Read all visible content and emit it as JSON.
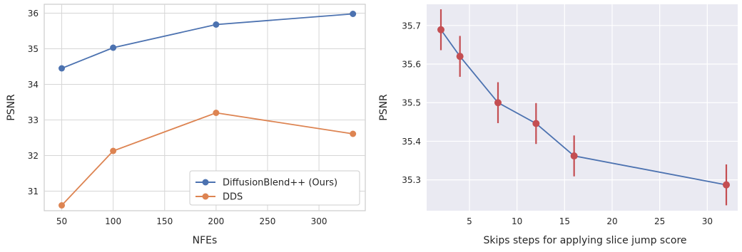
{
  "chart_data": [
    {
      "type": "line",
      "xlabel": "NFEs",
      "ylabel": "PSNR",
      "xlim": [
        33,
        345
      ],
      "ylim": [
        30.45,
        36.25
      ],
      "xticks": [
        50,
        100,
        150,
        200,
        250,
        300
      ],
      "yticks": [
        31,
        32,
        33,
        34,
        35,
        36
      ],
      "grid": true,
      "background": "white",
      "legend": "lower-right",
      "series": [
        {
          "name": "DiffusionBlend++ (Ours)",
          "color": "#4c72b0",
          "x": [
            50,
            100,
            200,
            333
          ],
          "y": [
            34.45,
            35.03,
            35.68,
            35.98
          ]
        },
        {
          "name": "DDS",
          "color": "#dd8452",
          "x": [
            50,
            100,
            200,
            333
          ],
          "y": [
            30.6,
            32.13,
            33.2,
            32.61
          ]
        }
      ]
    },
    {
      "type": "line",
      "xlabel": "Skips steps for applying slice jump score",
      "ylabel": "PSNR",
      "xlim": [
        0.5,
        33.2
      ],
      "ylim": [
        35.22,
        35.755
      ],
      "xticks": [
        5,
        10,
        15,
        20,
        25,
        30
      ],
      "yticks": [
        35.3,
        35.4,
        35.5,
        35.6,
        35.7
      ],
      "grid": true,
      "background": "#eaeaf2",
      "line_color": "#4c72b0",
      "marker_color": "#c44e52",
      "series": [
        {
          "x": [
            2,
            4,
            8,
            12,
            16,
            32
          ],
          "y": [
            35.689,
            35.62,
            35.5,
            35.446,
            35.362,
            35.287
          ],
          "err": [
            0.053,
            0.053,
            0.053,
            0.053,
            0.053,
            0.053
          ]
        }
      ]
    }
  ]
}
